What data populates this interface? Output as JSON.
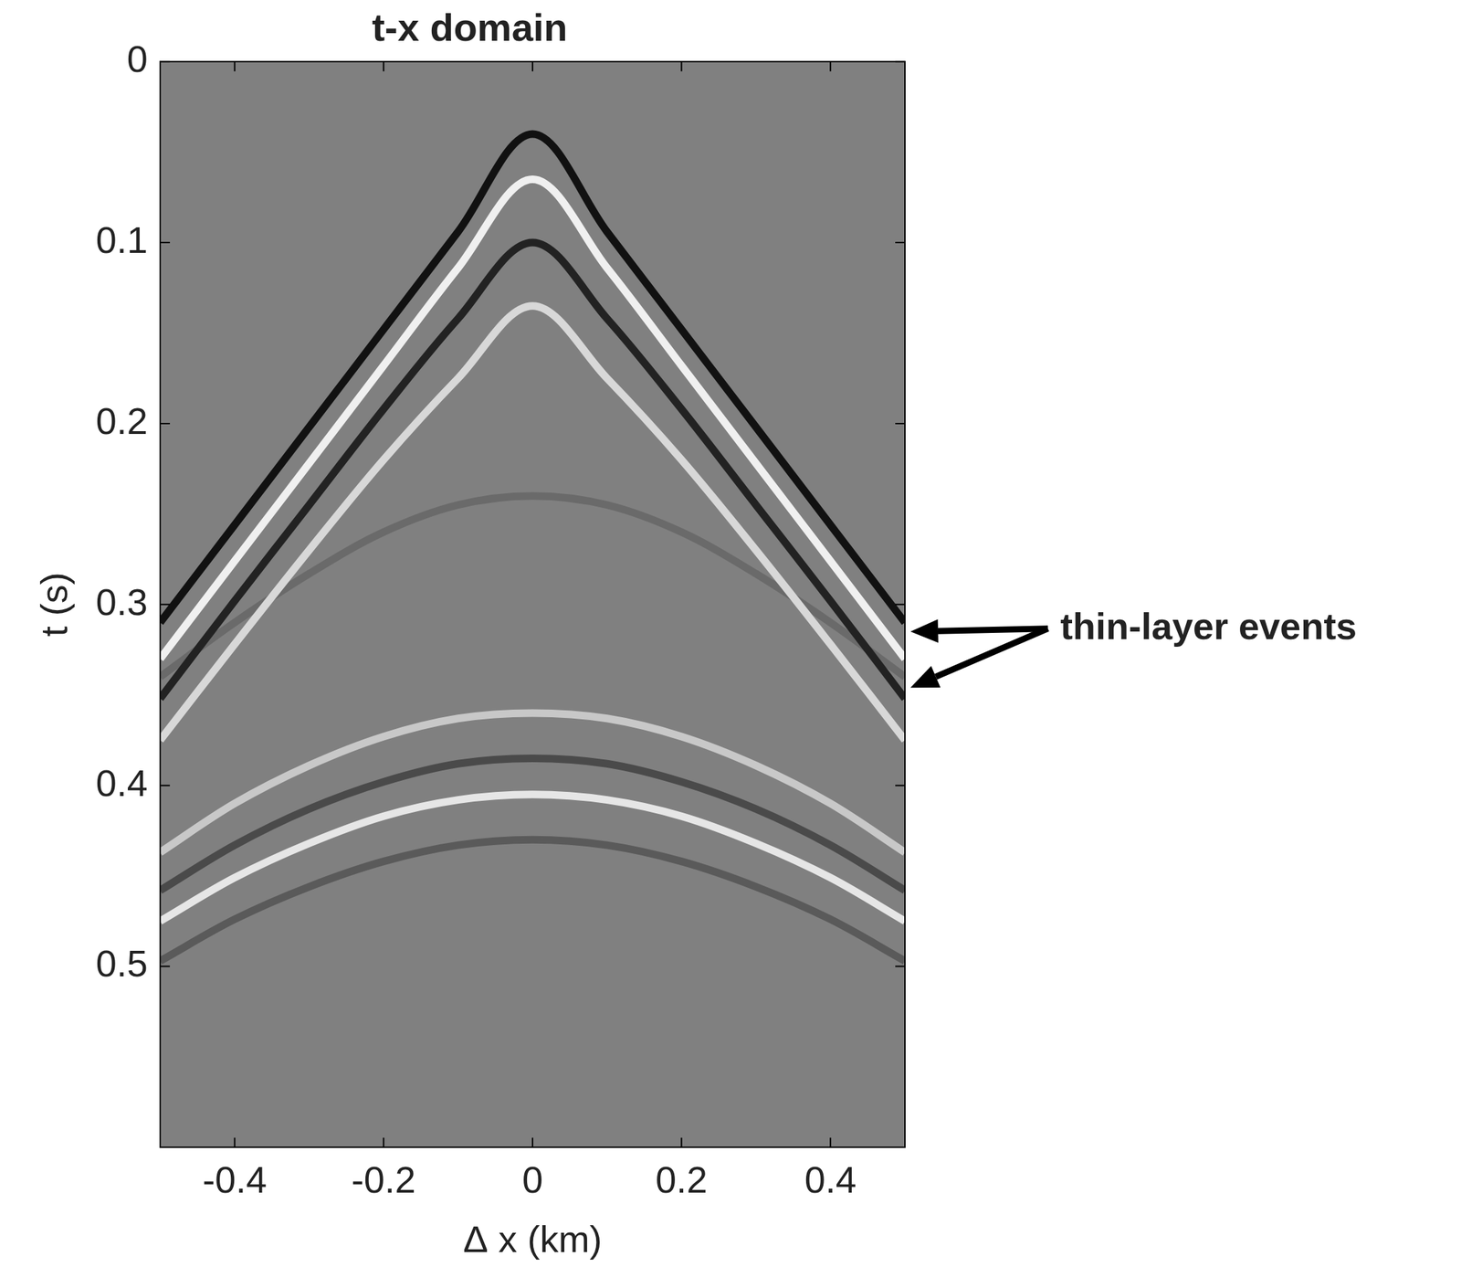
{
  "chart_data": {
    "type": "line",
    "title": "t-x domain",
    "x_label": "Δ x (km)",
    "y_label": "t (s)",
    "xlim": [
      -0.5,
      0.5
    ],
    "ylim": [
      0.6,
      0
    ],
    "xticks": [
      -0.4,
      -0.2,
      0,
      0.2,
      0.4
    ],
    "yticks": [
      0,
      0.1,
      0.2,
      0.3,
      0.4,
      0.5
    ],
    "grid": false,
    "x": [
      -0.5,
      -0.4,
      -0.3,
      -0.2,
      -0.1,
      0,
      0.1,
      0.2,
      0.3,
      0.4,
      0.5
    ],
    "series": [
      {
        "color": "#111111",
        "values": [
          0.31,
          0.256,
          0.202,
          0.148,
          0.094,
          0.04,
          0.094,
          0.148,
          0.202,
          0.256,
          0.31
        ]
      },
      {
        "color": "#f0f0f0",
        "values": [
          0.33,
          0.276,
          0.222,
          0.168,
          0.114,
          0.065,
          0.114,
          0.168,
          0.222,
          0.276,
          0.33
        ]
      },
      {
        "color": "#222222",
        "values": [
          0.352,
          0.298,
          0.245,
          0.192,
          0.142,
          0.1,
          0.142,
          0.192,
          0.245,
          0.298,
          0.352
        ]
      },
      {
        "color": "#d8d8d8",
        "values": [
          0.375,
          0.322,
          0.27,
          0.22,
          0.175,
          0.135,
          0.175,
          0.22,
          0.27,
          0.322,
          0.375
        ]
      },
      {
        "color": "#6a6a6a",
        "values": [
          0.34,
          0.31,
          0.283,
          0.26,
          0.245,
          0.24,
          0.245,
          0.26,
          0.283,
          0.31,
          0.34
        ]
      },
      {
        "color": "#c8c8c8",
        "values": [
          0.437,
          0.41,
          0.389,
          0.373,
          0.363,
          0.36,
          0.363,
          0.373,
          0.389,
          0.41,
          0.437
        ]
      },
      {
        "color": "#4a4a4a",
        "values": [
          0.458,
          0.433,
          0.413,
          0.398,
          0.388,
          0.385,
          0.388,
          0.398,
          0.413,
          0.433,
          0.458
        ]
      },
      {
        "color": "#e6e6e6",
        "values": [
          0.475,
          0.451,
          0.432,
          0.417,
          0.408,
          0.405,
          0.408,
          0.417,
          0.432,
          0.451,
          0.475
        ]
      },
      {
        "color": "#5a5a5a",
        "values": [
          0.497,
          0.474,
          0.456,
          0.442,
          0.433,
          0.43,
          0.433,
          0.442,
          0.456,
          0.474,
          0.497
        ]
      }
    ],
    "annotations": [
      {
        "text": "thin-layer events",
        "points": [
          {
            "x": 0.5,
            "y": 0.315
          },
          {
            "x": 0.5,
            "y": 0.346
          }
        ]
      }
    ]
  }
}
